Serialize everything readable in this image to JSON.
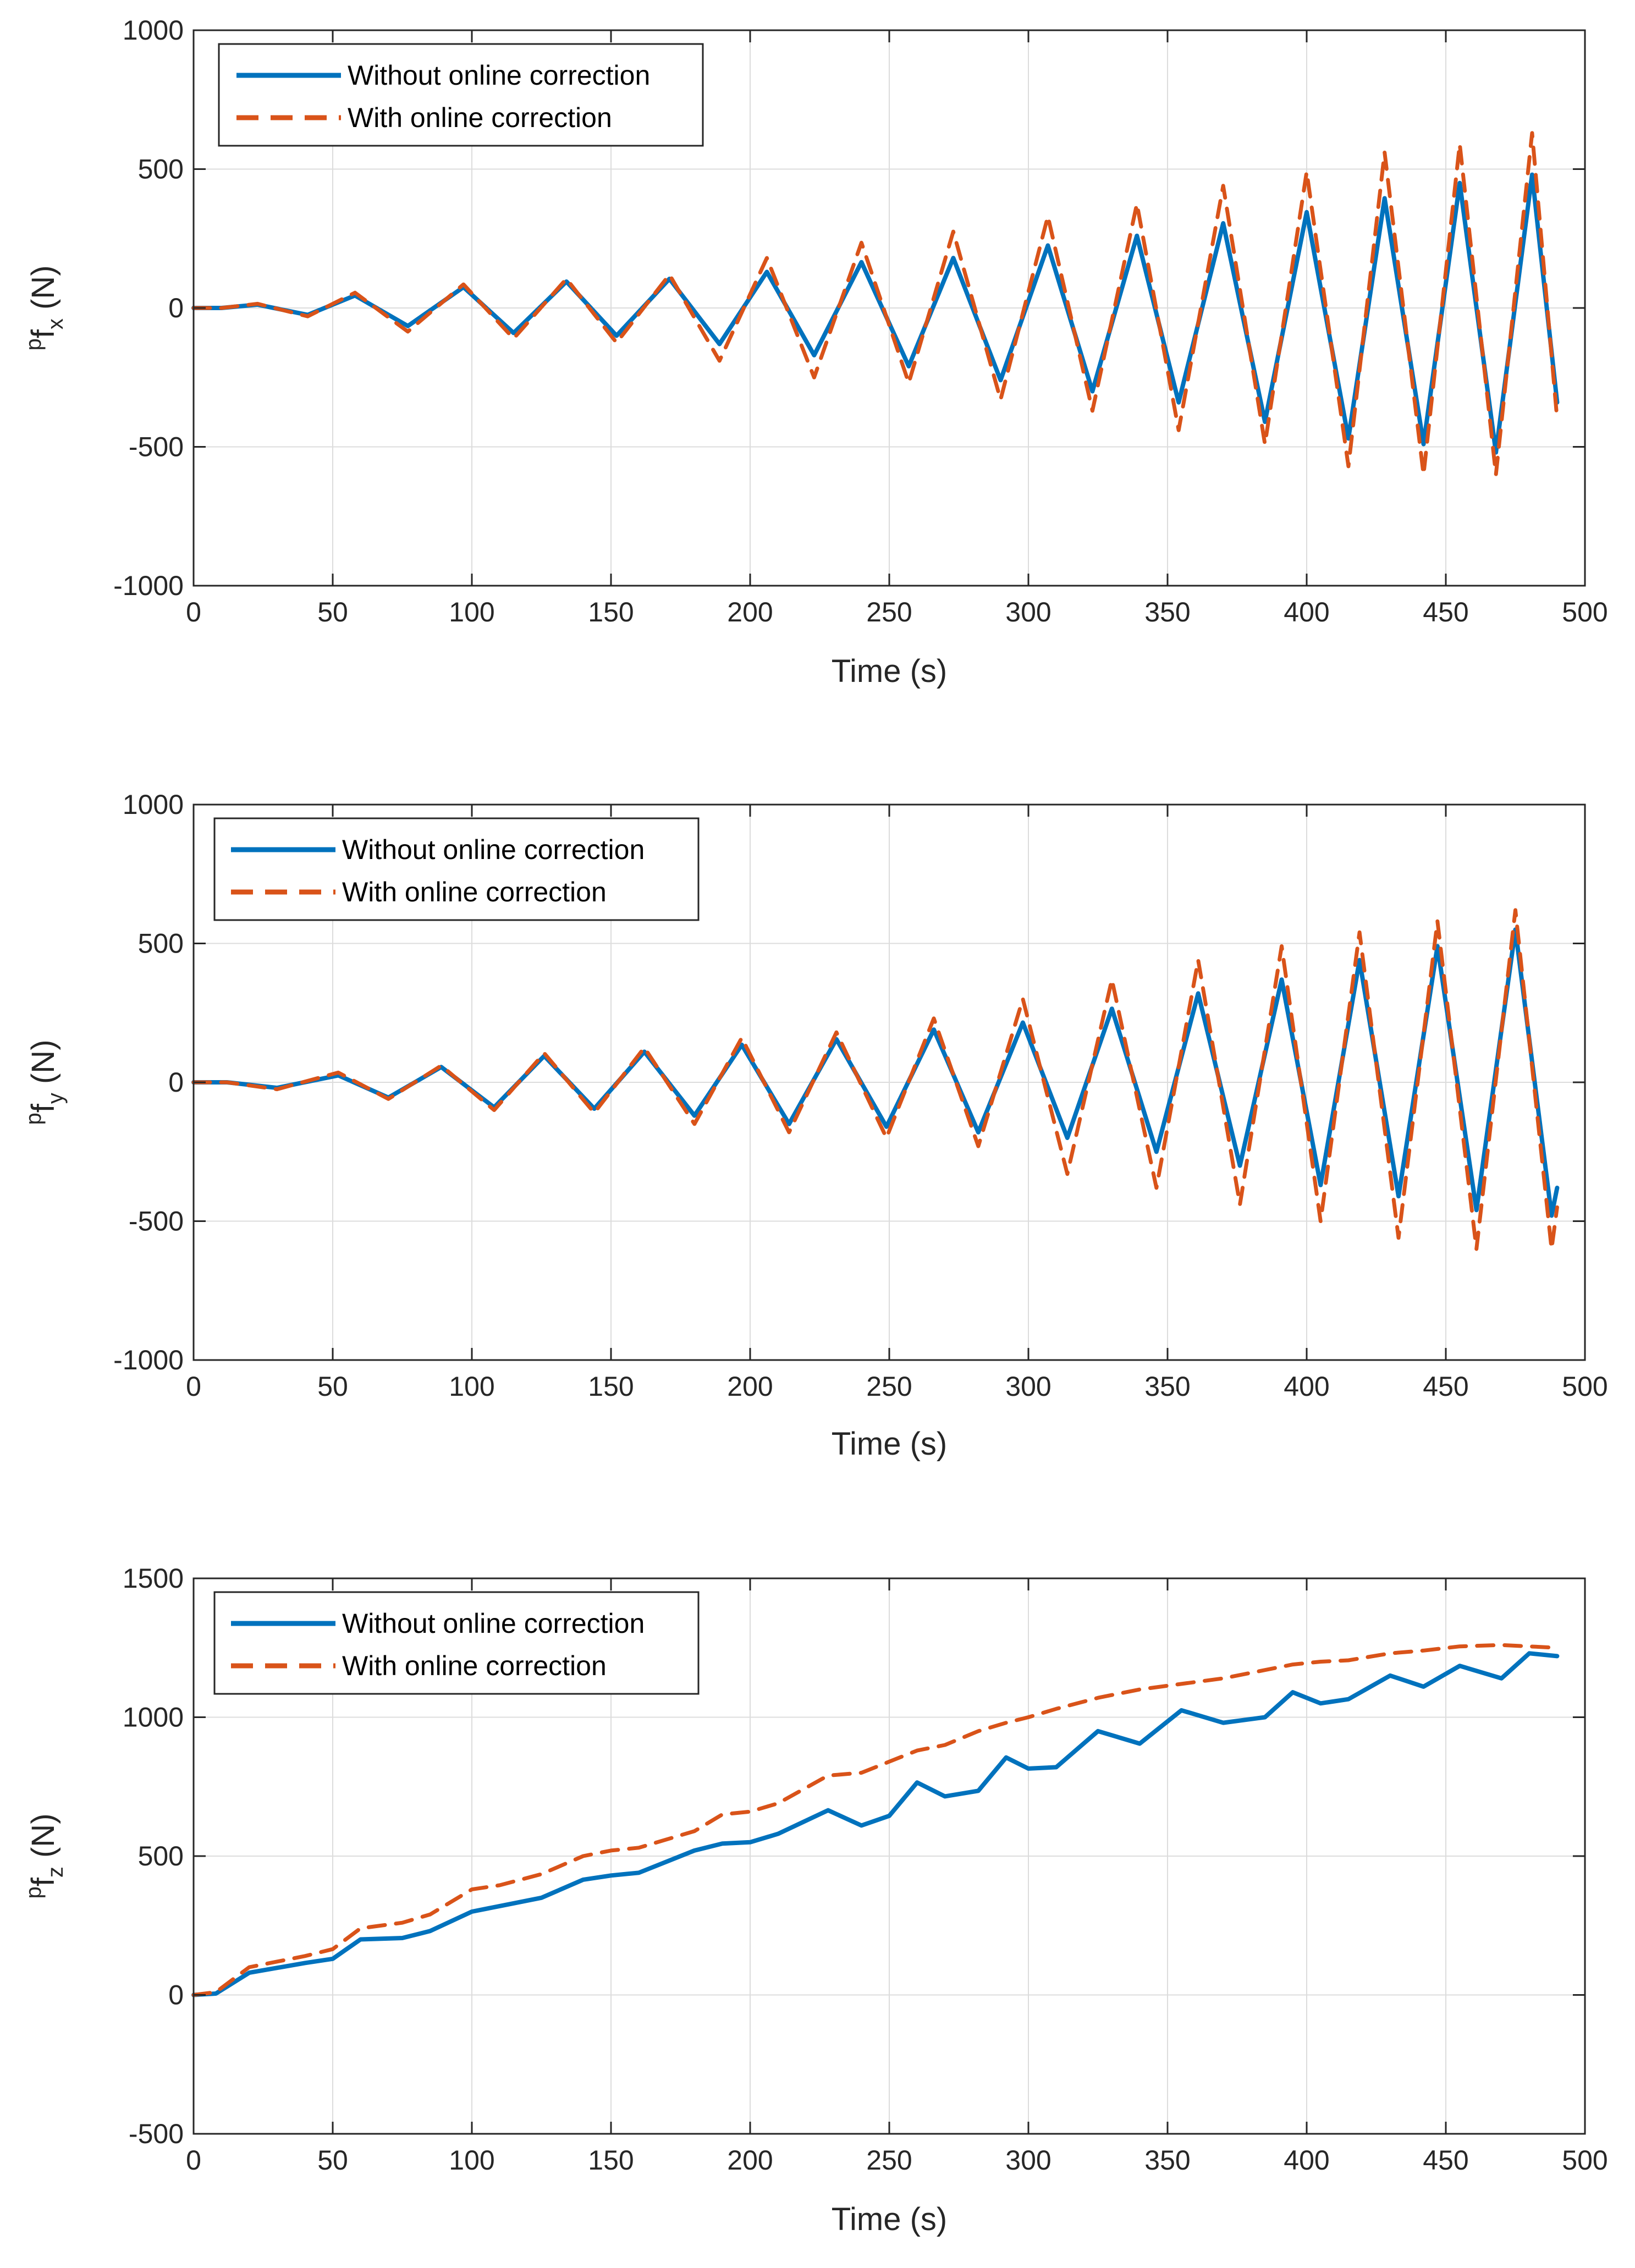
{
  "colors": {
    "without": "#0072BD",
    "with": "#D95319",
    "grid": "#dcdcdc",
    "axis": "#262626",
    "background": "#ffffff"
  },
  "chart_data": [
    {
      "type": "line",
      "id": "fx",
      "xlabel": "Time (s)",
      "ylabel_sup": "p",
      "ylabel_main": "f",
      "ylabel_sub": "x",
      "ylabel_unit": " (N)",
      "xlim": [
        0,
        500
      ],
      "ylim": [
        -1000,
        1000
      ],
      "xticks": [
        0,
        50,
        100,
        150,
        200,
        250,
        300,
        350,
        400,
        450,
        500
      ],
      "yticks": [
        -1000,
        -500,
        0,
        500,
        1000
      ],
      "grid": true,
      "legend_position": "top-left",
      "series": [
        {
          "name": "Without online correction",
          "style": "solid",
          "x": [
            0,
            10,
            23,
            41,
            58,
            77,
            97,
            115,
            134,
            152,
            171,
            189,
            206,
            223,
            240,
            257,
            273,
            290,
            307,
            323,
            339,
            354,
            370,
            385,
            400,
            415,
            428,
            442,
            455,
            468,
            481,
            490
          ],
          "values": [
            0,
            0,
            12,
            -25,
            45,
            -65,
            75,
            -90,
            95,
            -100,
            105,
            -130,
            130,
            -170,
            165,
            -210,
            180,
            -260,
            225,
            -300,
            260,
            -340,
            305,
            -410,
            345,
            -470,
            395,
            -490,
            450,
            -520,
            480,
            -340
          ]
        },
        {
          "name": "With online correction",
          "style": "dashed",
          "x": [
            0,
            10,
            23,
            41,
            58,
            77,
            97,
            115,
            134,
            152,
            171,
            189,
            206,
            223,
            240,
            257,
            273,
            290,
            307,
            323,
            339,
            354,
            370,
            385,
            400,
            415,
            428,
            442,
            455,
            468,
            481,
            490
          ],
          "values": [
            0,
            0,
            15,
            -30,
            55,
            -85,
            85,
            -110,
            105,
            -125,
            120,
            -190,
            180,
            -250,
            235,
            -270,
            275,
            -330,
            330,
            -370,
            375,
            -440,
            440,
            -490,
            490,
            -570,
            560,
            -600,
            590,
            -600,
            630,
            -400
          ]
        }
      ]
    },
    {
      "type": "line",
      "id": "fy",
      "xlabel": "Time (s)",
      "ylabel_sup": "p",
      "ylabel_main": "f",
      "ylabel_sub": "y",
      "ylabel_unit": " (N)",
      "xlim": [
        0,
        500
      ],
      "ylim": [
        -1000,
        1000
      ],
      "xticks": [
        0,
        50,
        100,
        150,
        200,
        250,
        300,
        350,
        400,
        450,
        500
      ],
      "yticks": [
        -1000,
        -500,
        0,
        500,
        1000
      ],
      "grid": true,
      "legend_position": "top-left",
      "series": [
        {
          "name": "Without online correction",
          "style": "solid",
          "x": [
            0,
            12,
            30,
            52,
            70,
            89,
            108,
            126,
            144,
            162,
            180,
            197,
            214,
            231,
            249,
            266,
            282,
            298,
            314,
            330,
            346,
            361,
            376,
            391,
            405,
            419,
            433,
            447,
            461,
            475,
            488,
            490
          ],
          "values": [
            0,
            0,
            -20,
            25,
            -55,
            55,
            -90,
            95,
            -95,
            110,
            -120,
            135,
            -150,
            155,
            -160,
            190,
            -180,
            215,
            -200,
            265,
            -250,
            320,
            -300,
            370,
            -370,
            440,
            -410,
            490,
            -460,
            550,
            -480,
            -380
          ]
        },
        {
          "name": "With online correction",
          "style": "dashed",
          "x": [
            0,
            12,
            30,
            52,
            70,
            89,
            108,
            126,
            144,
            162,
            180,
            197,
            214,
            231,
            249,
            266,
            282,
            298,
            314,
            330,
            346,
            361,
            376,
            391,
            405,
            419,
            433,
            447,
            461,
            475,
            488,
            490
          ],
          "values": [
            0,
            0,
            -25,
            35,
            -60,
            60,
            -100,
            105,
            -110,
            125,
            -150,
            160,
            -180,
            180,
            -200,
            230,
            -230,
            300,
            -330,
            370,
            -380,
            440,
            -440,
            490,
            -500,
            540,
            -560,
            580,
            -600,
            620,
            -600,
            -450
          ]
        }
      ]
    },
    {
      "type": "line",
      "id": "fz",
      "xlabel": "Time (s)",
      "ylabel_sup": "p",
      "ylabel_main": "f",
      "ylabel_sub": "z",
      "ylabel_unit": " (N)",
      "xlim": [
        0,
        500
      ],
      "ylim": [
        -500,
        1500
      ],
      "xticks": [
        0,
        50,
        100,
        150,
        200,
        250,
        300,
        350,
        400,
        450,
        500
      ],
      "yticks": [
        -500,
        0,
        500,
        1000,
        1500
      ],
      "grid": true,
      "legend_position": "top-left",
      "series": [
        {
          "name": "Without online correction",
          "style": "solid",
          "x": [
            0,
            8,
            20,
            40,
            50,
            60,
            75,
            85,
            100,
            110,
            125,
            140,
            150,
            160,
            180,
            190,
            200,
            210,
            228,
            240,
            250,
            260,
            270,
            282,
            292,
            300,
            310,
            325,
            340,
            355,
            370,
            385,
            395,
            405,
            415,
            430,
            442,
            455,
            470,
            480,
            490
          ],
          "values": [
            0,
            5,
            80,
            115,
            130,
            200,
            205,
            230,
            300,
            320,
            350,
            415,
            430,
            440,
            520,
            545,
            550,
            580,
            665,
            610,
            645,
            765,
            715,
            735,
            855,
            815,
            820,
            950,
            905,
            1025,
            980,
            1000,
            1090,
            1050,
            1065,
            1150,
            1110,
            1185,
            1140,
            1230,
            1220
          ]
        },
        {
          "name": "With online correction",
          "style": "dashed",
          "x": [
            0,
            8,
            20,
            40,
            50,
            60,
            75,
            85,
            100,
            110,
            125,
            140,
            150,
            160,
            180,
            190,
            200,
            210,
            228,
            240,
            250,
            260,
            270,
            282,
            292,
            300,
            310,
            325,
            340,
            355,
            370,
            385,
            395,
            405,
            415,
            430,
            442,
            455,
            470,
            480,
            490
          ],
          "values": [
            0,
            10,
            100,
            140,
            165,
            240,
            260,
            290,
            380,
            395,
            435,
            500,
            520,
            530,
            590,
            650,
            660,
            690,
            790,
            800,
            840,
            880,
            900,
            950,
            980,
            1000,
            1030,
            1070,
            1100,
            1120,
            1140,
            1170,
            1190,
            1200,
            1205,
            1230,
            1240,
            1255,
            1260,
            1255,
            1250
          ]
        }
      ]
    }
  ]
}
